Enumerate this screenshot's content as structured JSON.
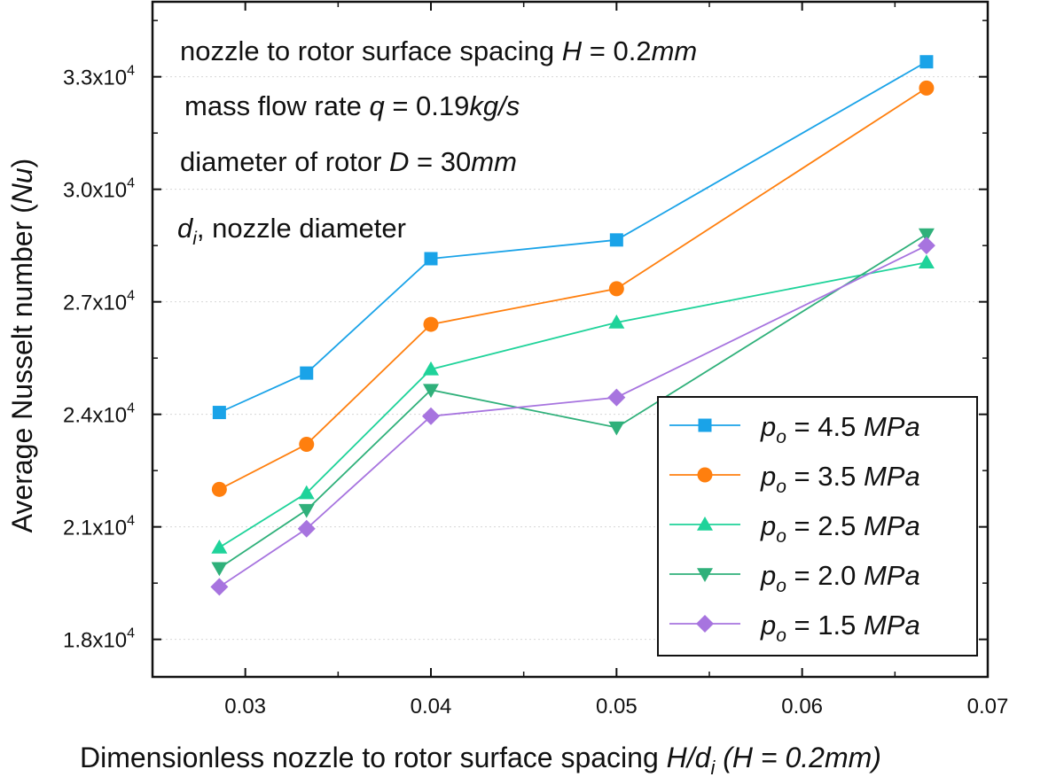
{
  "chart_data": {
    "type": "line",
    "xlabel": {
      "main": "Dimensionless nozzle to rotor surface spacing ",
      "var": "H/d",
      "sub": "i",
      "paren": " (H = 0.2mm)"
    },
    "ylabel": {
      "main": "Average Nusselt number (",
      "var": "Nu",
      "close": ")"
    },
    "xlim": [
      0.025,
      0.07
    ],
    "ylim": [
      17000,
      35000
    ],
    "x_ticks": [
      0.03,
      0.04,
      0.05,
      0.06,
      0.07
    ],
    "x_tick_labels": [
      "0.03",
      "0.04",
      "0.05",
      "0.06",
      "0.07"
    ],
    "y_ticks": [
      18000,
      21000,
      24000,
      27000,
      30000,
      33000
    ],
    "y_tick_labels": [
      {
        "mant": "1.8x10",
        "exp": "4"
      },
      {
        "mant": "2.1x10",
        "exp": "4"
      },
      {
        "mant": "2.4x10",
        "exp": "4"
      },
      {
        "mant": "2.7x10",
        "exp": "4"
      },
      {
        "mant": "3.0x10",
        "exp": "4"
      },
      {
        "mant": "3.3x10",
        "exp": "4"
      }
    ],
    "grid": "horizontal dotted",
    "legend_position": "bottom-right",
    "x": [
      0.0286,
      0.0333,
      0.04,
      0.05,
      0.0667
    ],
    "series": [
      {
        "name": "p",
        "name_sub": "o",
        "name_rest": " = 4.5 ",
        "name_unit": "MPa",
        "color": "#1aa3e8",
        "marker": "square",
        "values": [
          24050,
          25100,
          28150,
          28650,
          33400
        ]
      },
      {
        "name": "p",
        "name_sub": "o",
        "name_rest": " = 3.5 ",
        "name_unit": "MPa",
        "color": "#ff7f0e",
        "marker": "circle",
        "values": [
          22000,
          23200,
          26400,
          27350,
          32700
        ]
      },
      {
        "name": "p",
        "name_sub": "o",
        "name_rest": " = 2.5 ",
        "name_unit": "MPa",
        "color": "#1fd39a",
        "marker": "triangle",
        "values": [
          20450,
          21900,
          25200,
          26450,
          28050
        ]
      },
      {
        "name": "p",
        "name_sub": "o",
        "name_rest": " = 2.0 ",
        "name_unit": "MPa",
        "color": "#2fb07a",
        "marker": "tri-down",
        "values": [
          19900,
          21450,
          24650,
          23650,
          28800
        ]
      },
      {
        "name": "p",
        "name_sub": "o",
        "name_rest": " = 1.5 ",
        "name_unit": "MPa",
        "color": "#a774df",
        "marker": "diamond",
        "values": [
          19400,
          20950,
          23950,
          24450,
          28500
        ]
      }
    ],
    "annotations": [
      {
        "text": "nozzle to rotor surface spacing ",
        "var": "H",
        "rest": " = 0.2",
        "unit": "mm"
      },
      {
        "text": "mass flow rate ",
        "var": "q",
        "rest": " = 0.19",
        "unit": "kg/s"
      },
      {
        "text": "diameter of rotor ",
        "var": "D",
        "rest": " = 30",
        "unit": "mm"
      },
      {
        "text": "",
        "var": "d",
        "sub": "i",
        "rest": ", nozzle diameter",
        "unit": ""
      }
    ]
  }
}
